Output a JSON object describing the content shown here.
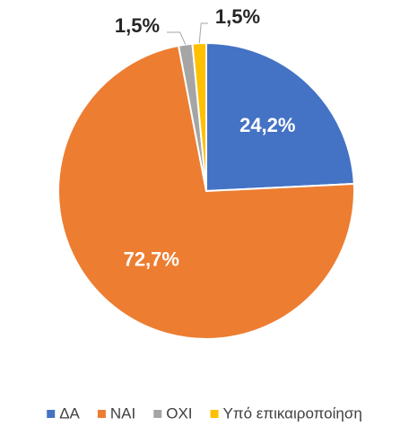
{
  "chart_data": {
    "type": "pie",
    "categories": [
      "ΔΑ",
      "ΝΑΙ",
      "ΟΧΙ",
      "Υπό επικαιροποίηση"
    ],
    "values": [
      24.2,
      72.7,
      1.5,
      1.5
    ],
    "value_labels": [
      "24,2%",
      "72,7%",
      "1,5%",
      "1,5%"
    ],
    "colors": [
      "#4472c4",
      "#ed7d31",
      "#a5a5a5",
      "#ffc000"
    ],
    "legend": "bottom"
  }
}
